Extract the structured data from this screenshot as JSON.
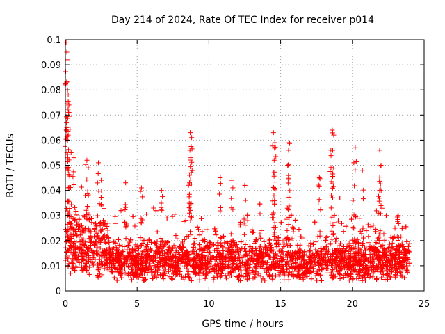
{
  "chart_data": {
    "type": "scatter",
    "title": "Day 214 of 2024, Rate Of TEC Index for receiver p014",
    "xlabel": "GPS time / hours",
    "ylabel": "ROTI / TECUs",
    "xlim": [
      0,
      25
    ],
    "ylim": [
      0,
      0.1
    ],
    "xticks": [
      0,
      5,
      10,
      15,
      20,
      25
    ],
    "xtick_labels": [
      "0",
      "5",
      "10",
      "15",
      "20",
      "25"
    ],
    "yticks": [
      0,
      0.01,
      0.02,
      0.03,
      0.04,
      0.05,
      0.06,
      0.07,
      0.08,
      0.09,
      0.1
    ],
    "ytick_labels": [
      "0",
      "0.01",
      "0.02",
      "0.03",
      "0.04",
      "0.05",
      "0.06",
      "0.07",
      "0.08",
      "0.09",
      "0.1"
    ],
    "grid": true,
    "marker": "plus",
    "color": "#ff0000",
    "series": [
      {
        "name": "ROTI",
        "bulk_band": {
          "x_range": [
            0,
            24
          ],
          "typical_min": 0.005,
          "typical_max": 0.028,
          "median": 0.012
        },
        "notable_points": [
          {
            "x": 0.05,
            "y": 0.099
          },
          {
            "x": 0.1,
            "y": 0.095
          },
          {
            "x": 0.12,
            "y": 0.092
          },
          {
            "x": 0.15,
            "y": 0.08
          },
          {
            "x": 0.2,
            "y": 0.078
          },
          {
            "x": 0.25,
            "y": 0.074
          },
          {
            "x": 0.3,
            "y": 0.071
          },
          {
            "x": 0.1,
            "y": 0.065
          },
          {
            "x": 0.2,
            "y": 0.062
          },
          {
            "x": 0.4,
            "y": 0.055
          },
          {
            "x": 0.6,
            "y": 0.053
          },
          {
            "x": 1.5,
            "y": 0.052
          },
          {
            "x": 1.6,
            "y": 0.049
          },
          {
            "x": 2.3,
            "y": 0.051
          },
          {
            "x": 2.5,
            "y": 0.044
          },
          {
            "x": 4.2,
            "y": 0.043
          },
          {
            "x": 5.3,
            "y": 0.041
          },
          {
            "x": 6.7,
            "y": 0.04
          },
          {
            "x": 8.7,
            "y": 0.063
          },
          {
            "x": 8.8,
            "y": 0.061
          },
          {
            "x": 8.75,
            "y": 0.053
          },
          {
            "x": 8.65,
            "y": 0.043
          },
          {
            "x": 10.8,
            "y": 0.045
          },
          {
            "x": 11.6,
            "y": 0.044
          },
          {
            "x": 12.5,
            "y": 0.042
          },
          {
            "x": 14.5,
            "y": 0.063
          },
          {
            "x": 14.6,
            "y": 0.059
          },
          {
            "x": 14.55,
            "y": 0.052
          },
          {
            "x": 14.5,
            "y": 0.047
          },
          {
            "x": 15.6,
            "y": 0.059
          },
          {
            "x": 15.55,
            "y": 0.056
          },
          {
            "x": 15.5,
            "y": 0.05
          },
          {
            "x": 17.7,
            "y": 0.045
          },
          {
            "x": 18.6,
            "y": 0.064
          },
          {
            "x": 18.7,
            "y": 0.062
          },
          {
            "x": 18.5,
            "y": 0.056
          },
          {
            "x": 18.6,
            "y": 0.047
          },
          {
            "x": 20.2,
            "y": 0.057
          },
          {
            "x": 20.1,
            "y": 0.051
          },
          {
            "x": 20.7,
            "y": 0.048
          },
          {
            "x": 21.9,
            "y": 0.056
          },
          {
            "x": 22.0,
            "y": 0.05
          },
          {
            "x": 21.9,
            "y": 0.04
          },
          {
            "x": 23.2,
            "y": 0.03
          }
        ]
      }
    ]
  }
}
